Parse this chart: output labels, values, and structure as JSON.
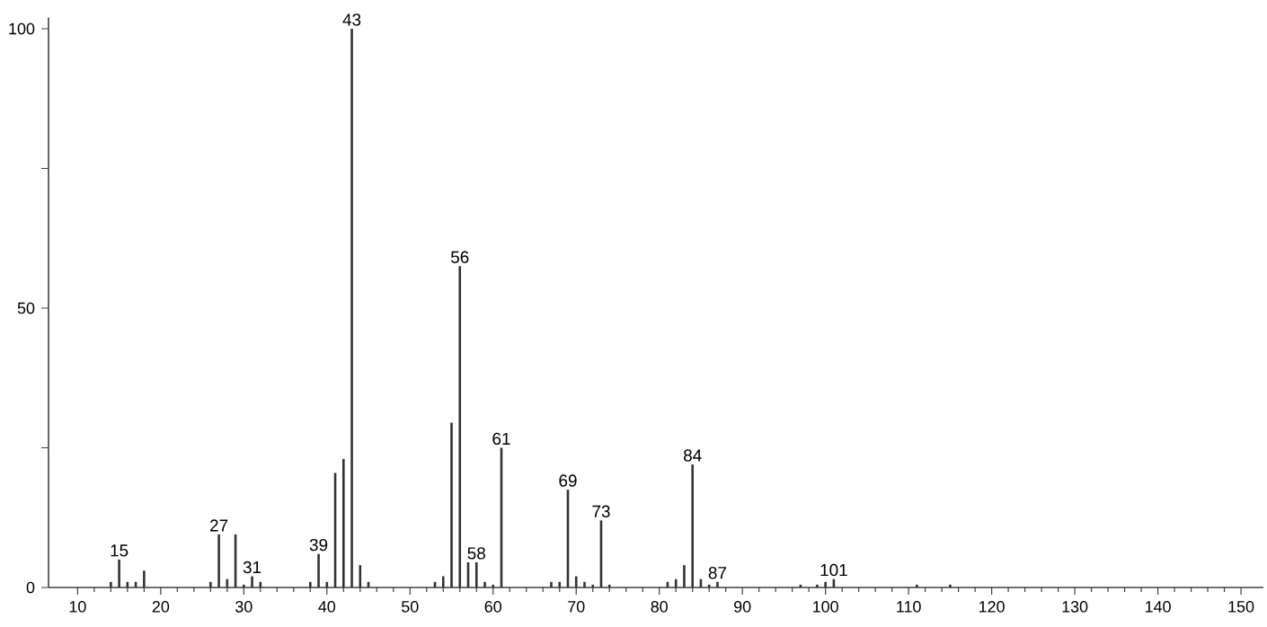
{
  "chart_data": {
    "type": "bar",
    "color": "#333333",
    "x": [
      14,
      15,
      16,
      17,
      18,
      26,
      27,
      28,
      29,
      30,
      31,
      32,
      38,
      39,
      40,
      41,
      42,
      43,
      44,
      45,
      53,
      54,
      55,
      56,
      57,
      58,
      59,
      60,
      61,
      67,
      68,
      69,
      70,
      71,
      72,
      73,
      74,
      81,
      82,
      83,
      84,
      85,
      86,
      87,
      97,
      99,
      100,
      101,
      111,
      115
    ],
    "values": [
      1,
      5,
      1,
      1,
      3,
      1,
      9.5,
      1.5,
      9.5,
      0.5,
      2,
      1,
      1,
      6,
      1,
      20.5,
      23,
      100,
      4,
      1,
      1,
      2,
      29.5,
      57.5,
      4.5,
      4.5,
      1,
      0.5,
      25,
      1,
      1,
      17.5,
      2,
      1,
      0.5,
      12,
      0.5,
      1,
      1.5,
      4,
      22,
      1.5,
      0.5,
      1,
      0.5,
      0.5,
      1,
      1.5,
      0.5,
      0.5
    ],
    "xlim": [
      6.5,
      152.7
    ],
    "ylim": [
      0,
      102
    ],
    "xticks": [
      10,
      {
        "value": 12,
        "label": null
      },
      {
        "value": 14,
        "label": null
      },
      {
        "value": 16,
        "label": null
      },
      {
        "value": 18,
        "label": null
      },
      20,
      {
        "value": 22,
        "label": null
      },
      {
        "value": 24,
        "label": null
      },
      {
        "value": 26,
        "label": null
      },
      {
        "value": 28,
        "label": null
      },
      30,
      {
        "value": 32,
        "label": null
      },
      {
        "value": 34,
        "label": null
      },
      {
        "value": 36,
        "label": null
      },
      {
        "value": 38,
        "label": null
      },
      40,
      {
        "value": 42,
        "label": null
      },
      {
        "value": 44,
        "label": null
      },
      {
        "value": 46,
        "label": null
      },
      {
        "value": 48,
        "label": null
      },
      50,
      {
        "value": 52,
        "label": null
      },
      {
        "value": 54,
        "label": null
      },
      {
        "value": 56,
        "label": null
      },
      {
        "value": 58,
        "label": null
      },
      60,
      {
        "value": 62,
        "label": null
      },
      {
        "value": 64,
        "label": null
      },
      {
        "value": 66,
        "label": null
      },
      {
        "value": 68,
        "label": null
      },
      70,
      {
        "value": 72,
        "label": null
      },
      {
        "value": 74,
        "label": null
      },
      {
        "value": 76,
        "label": null
      },
      {
        "value": 78,
        "label": null
      },
      80,
      {
        "value": 82,
        "label": null
      },
      {
        "value": 84,
        "label": null
      },
      {
        "value": 86,
        "label": null
      },
      {
        "value": 88,
        "label": null
      },
      90,
      {
        "value": 92,
        "label": null
      },
      {
        "value": 94,
        "label": null
      },
      {
        "value": 96,
        "label": null
      },
      {
        "value": 98,
        "label": null
      },
      100,
      {
        "value": 102,
        "label": null
      },
      {
        "value": 104,
        "label": null
      },
      {
        "value": 106,
        "label": null
      },
      {
        "value": 108,
        "label": null
      },
      110,
      {
        "value": 112,
        "label": null
      },
      {
        "value": 114,
        "label": null
      },
      {
        "value": 116,
        "label": null
      },
      {
        "value": 118,
        "label": null
      },
      120,
      {
        "value": 122,
        "label": null
      },
      {
        "value": 124,
        "label": null
      },
      {
        "value": 126,
        "label": null
      },
      {
        "value": 128,
        "label": null
      },
      130,
      {
        "value": 132,
        "label": null
      },
      {
        "value": 134,
        "label": null
      },
      {
        "value": 136,
        "label": null
      },
      {
        "value": 138,
        "label": null
      },
      140,
      {
        "value": 142,
        "label": null
      },
      {
        "value": 144,
        "label": null
      },
      {
        "value": 146,
        "label": null
      },
      {
        "value": 148,
        "label": null
      },
      150
    ],
    "yticks": [
      0,
      {
        "value": 25,
        "label": null
      },
      50,
      {
        "value": 75,
        "label": null
      },
      100
    ],
    "annotations": [
      {
        "text": "15",
        "x": 15,
        "y": 5
      },
      {
        "text": "27",
        "x": 27,
        "y": 9.5
      },
      {
        "text": "31",
        "x": 31,
        "y": 2
      },
      {
        "text": "39",
        "x": 39,
        "y": 6
      },
      {
        "text": "43",
        "x": 43,
        "y": 100
      },
      {
        "text": "56",
        "x": 56,
        "y": 57.5
      },
      {
        "text": "58",
        "x": 58,
        "y": 4.5
      },
      {
        "text": "61",
        "x": 61,
        "y": 25
      },
      {
        "text": "69",
        "x": 69,
        "y": 17.5
      },
      {
        "text": "73",
        "x": 73,
        "y": 12
      },
      {
        "text": "84",
        "x": 84,
        "y": 22
      },
      {
        "text": "87",
        "x": 87,
        "y": 1
      },
      {
        "text": "101",
        "x": 101,
        "y": 1.5
      }
    ]
  }
}
